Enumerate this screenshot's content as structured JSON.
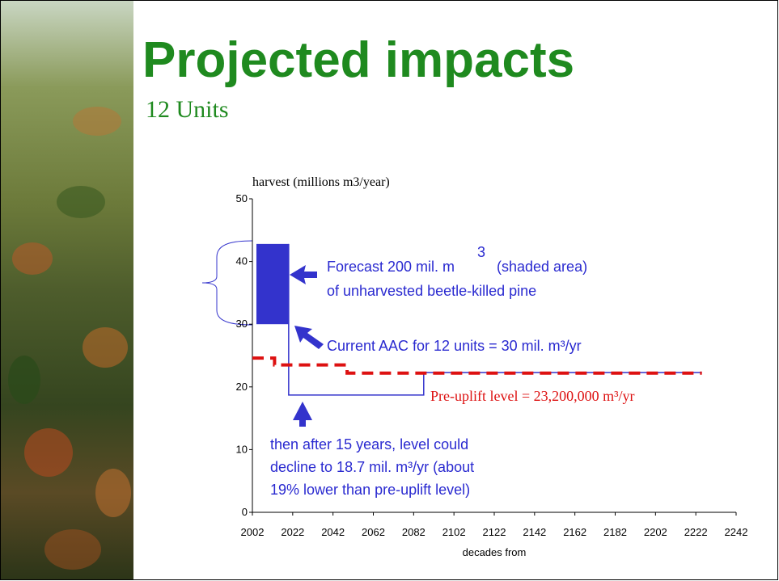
{
  "title": "Projected impacts",
  "subtitle": "12 Units",
  "chart_data": {
    "type": "line",
    "y_label": "harvest (millions m3/year)",
    "x_label": "decades from",
    "xlim": [
      2002,
      2242
    ],
    "xticks": [
      2002,
      2022,
      2042,
      2062,
      2082,
      2102,
      2122,
      2142,
      2162,
      2182,
      2202,
      2222,
      2242
    ],
    "ylim": [
      0,
      50
    ],
    "yticks": [
      0,
      10,
      20,
      30,
      40,
      50
    ],
    "series": [
      {
        "color": "#3333cc",
        "dashed": false,
        "x": [
          2020,
          2020,
          2087,
          2087,
          2225
        ],
        "values": [
          42.8,
          18.7,
          18.7,
          22.3,
          22.3
        ]
      },
      {
        "color": "#dd1111",
        "dashed": true,
        "x": [
          2002,
          2013,
          2013,
          2049,
          2049,
          2225
        ],
        "values": [
          24.6,
          24.6,
          23.5,
          23.5,
          22.2,
          22.2
        ]
      }
    ],
    "shaded_area": {
      "color": "#3333cc",
      "x": [
        2004,
        2020
      ],
      "low": 30,
      "high": 42.8
    },
    "annotations": {
      "forecast": "Forecast 200 mil. m",
      "forecast_sup": "3",
      "forecast_tail": "(shaded area)",
      "forecast_line2": "of unharvested beetle-killed pine",
      "aac": "Current AAC for 12 units = 30 mil. m³/yr",
      "preuplift": "Pre-uplift level = 23,200,000 m³/yr",
      "decline": [
        "then after 15 years, level could",
        "decline to 18.7 mil. m³/yr (about",
        "19% lower than pre-uplift level)"
      ]
    }
  }
}
